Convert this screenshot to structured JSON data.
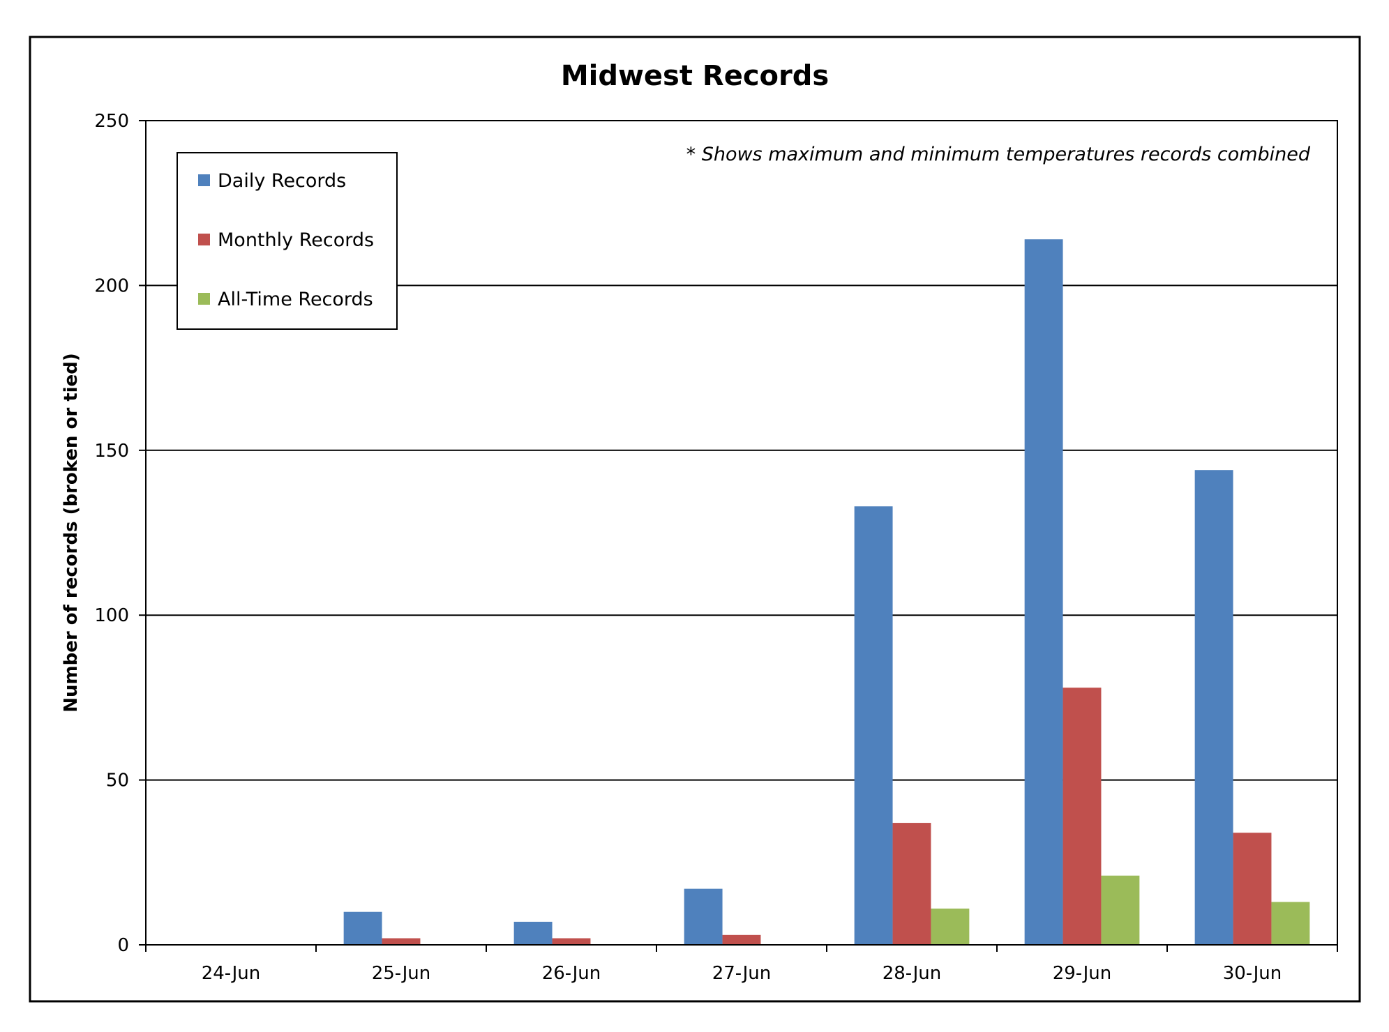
{
  "chart_data": {
    "type": "bar",
    "title": "Midwest Records",
    "ylabel": "Number of records (broken or tied)",
    "xlabel": "",
    "annotation": "* Shows maximum and minimum temperatures records combined",
    "categories": [
      "24-Jun",
      "25-Jun",
      "26-Jun",
      "27-Jun",
      "28-Jun",
      "29-Jun",
      "30-Jun"
    ],
    "ylim": [
      0,
      250
    ],
    "yticks": [
      "0",
      "50",
      "100",
      "150",
      "200",
      "250"
    ],
    "grid": true,
    "legend_position": "top-left",
    "series": [
      {
        "name": "Daily Records",
        "color": "#4f81bd",
        "values": [
          0,
          10,
          7,
          17,
          133,
          214,
          144
        ]
      },
      {
        "name": "Monthly Records",
        "color": "#c0504d",
        "values": [
          0,
          2,
          2,
          3,
          37,
          78,
          34
        ]
      },
      {
        "name": "All-Time Records",
        "color": "#9bbb59",
        "values": [
          0,
          0,
          0,
          0,
          11,
          21,
          13
        ]
      }
    ]
  }
}
